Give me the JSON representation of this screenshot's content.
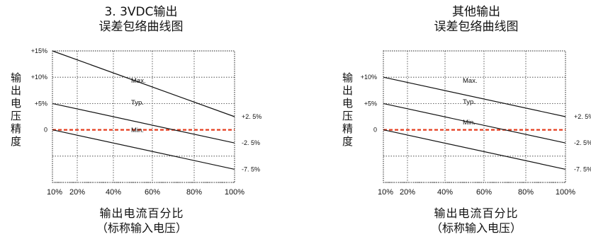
{
  "chart_data": [
    {
      "type": "line",
      "title": "3. 3VDC输出",
      "subtitle": "误差包络曲线图",
      "ylabel": "输出电压精度",
      "xlabel": "输出电流百分比",
      "xlabel_sub": "（标称输入电压）",
      "x_ticks": [
        "10%",
        "20%",
        "40%",
        "60%",
        "80%",
        "100%"
      ],
      "y_ticks": [
        "+15%",
        "+10%",
        "+5%",
        "0"
      ],
      "right_labels": [
        "+2. 5%",
        "-2. 5%",
        "-7. 5%"
      ],
      "xlim": [
        10,
        100
      ],
      "ylim": [
        -10,
        15
      ],
      "grid": true,
      "reference_line": {
        "y": 0,
        "color": "#e53c1e"
      },
      "series": [
        {
          "name": "Max.",
          "x": [
            10,
            100
          ],
          "y": [
            15,
            2.5
          ]
        },
        {
          "name": "Typ.",
          "x": [
            10,
            100
          ],
          "y": [
            5,
            -2.5
          ]
        },
        {
          "name": "Min.",
          "x": [
            10,
            100
          ],
          "y": [
            0,
            -7.5
          ]
        }
      ]
    },
    {
      "type": "line",
      "title": "其他输出",
      "subtitle": "误差包络曲线图",
      "ylabel": "输出电压精度",
      "xlabel": "输出电流百分比",
      "xlabel_sub": "（标称输入电压）",
      "x_ticks": [
        "10%",
        "20%",
        "40%",
        "60%",
        "80%",
        "100%"
      ],
      "y_ticks": [
        "+10%",
        "+5%",
        "0"
      ],
      "right_labels": [
        "+2. 5%",
        "-2. 5%",
        "-7. 5%"
      ],
      "xlim": [
        10,
        100
      ],
      "ylim": [
        -10,
        15
      ],
      "grid": true,
      "reference_line": {
        "y": 0,
        "color": "#e53c1e"
      },
      "series": [
        {
          "name": "Max.",
          "x": [
            10,
            100
          ],
          "y": [
            10,
            2.5
          ]
        },
        {
          "name": "Typ.",
          "x": [
            10,
            100
          ],
          "y": [
            5,
            -2.5
          ]
        },
        {
          "name": "Min.",
          "x": [
            10,
            100
          ],
          "y": [
            0,
            -7.5
          ]
        }
      ]
    }
  ]
}
